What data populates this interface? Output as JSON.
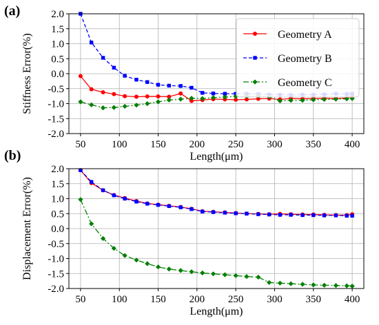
{
  "chart_data": [
    {
      "type": "line",
      "panel_label": "(a)",
      "xlabel": "Length(μm)",
      "ylabel": "Stiffness Error(%)",
      "xlim": [
        35,
        415
      ],
      "ylim": [
        -2.0,
        2.0
      ],
      "xticks": [
        "50",
        "100",
        "150",
        "200",
        "250",
        "300",
        "350",
        "400"
      ],
      "yticks": [
        "-2.0",
        "-1.5",
        "-1.0",
        "-0.5",
        "0.0",
        "0.5",
        "1.0",
        "1.5",
        "2.0"
      ],
      "grid": true,
      "legend": "top-right",
      "x": [
        50,
        64,
        79,
        93,
        107,
        122,
        136,
        150,
        164,
        179,
        193,
        207,
        221,
        236,
        250,
        264,
        279,
        293,
        307,
        321,
        336,
        350,
        364,
        379,
        393,
        400
      ],
      "series": [
        {
          "name": "Geometry A",
          "color": "#ff0000",
          "marker": "circle",
          "dash": "solid",
          "values": [
            -0.08,
            -0.52,
            -0.62,
            -0.68,
            -0.75,
            -0.77,
            -0.76,
            -0.76,
            -0.77,
            -0.66,
            -0.91,
            -0.88,
            -0.85,
            -0.86,
            -0.87,
            -0.86,
            -0.84,
            -0.83,
            -0.86,
            -0.83,
            -0.84,
            -0.83,
            -0.82,
            -0.83,
            -0.81,
            -0.77
          ]
        },
        {
          "name": "Geometry B",
          "color": "#0000ff",
          "marker": "square",
          "dash": "dashed",
          "values": [
            2.0,
            1.04,
            0.53,
            0.2,
            -0.07,
            -0.2,
            -0.28,
            -0.37,
            -0.4,
            -0.41,
            -0.47,
            -0.64,
            -0.66,
            -0.67,
            -0.67,
            -0.67,
            -0.68,
            -0.7,
            -0.7,
            -0.71,
            -0.7,
            -0.7,
            -0.69,
            -0.67,
            -0.68,
            -0.67
          ]
        },
        {
          "name": "Geometry C",
          "color": "#008000",
          "marker": "diamond",
          "dash": "dashdot",
          "values": [
            -0.94,
            -1.04,
            -1.14,
            -1.13,
            -1.09,
            -1.05,
            -1.0,
            -0.94,
            -0.88,
            -0.85,
            -0.82,
            -0.83,
            -0.8,
            -0.78,
            -0.76,
            -0.75,
            -0.74,
            -0.77,
            -0.91,
            -0.89,
            -0.89,
            -0.87,
            -0.86,
            -0.85,
            -0.84,
            -0.83
          ]
        }
      ]
    },
    {
      "type": "line",
      "panel_label": "(b)",
      "xlabel": "Length(μm)",
      "ylabel": "Displacement Error(%)",
      "xlim": [
        35,
        415
      ],
      "ylim": [
        -2.0,
        2.0
      ],
      "xticks": [
        "50",
        "100",
        "150",
        "200",
        "250",
        "300",
        "350",
        "400"
      ],
      "yticks": [
        "-2.0",
        "-1.5",
        "-1.0",
        "-0.5",
        "0.0",
        "0.5",
        "1.0",
        "1.5",
        "2.0"
      ],
      "grid": true,
      "x": [
        50,
        64,
        79,
        93,
        107,
        122,
        136,
        150,
        164,
        179,
        193,
        207,
        221,
        236,
        250,
        264,
        279,
        293,
        307,
        321,
        336,
        350,
        364,
        379,
        393,
        400
      ],
      "series": [
        {
          "color": "#ff0000",
          "marker": "circle",
          "dash": "solid",
          "values": [
            1.95,
            1.52,
            1.28,
            1.12,
            1.02,
            0.92,
            0.84,
            0.8,
            0.76,
            0.72,
            0.66,
            0.58,
            0.56,
            0.54,
            0.52,
            0.5,
            0.49,
            0.48,
            0.49,
            0.48,
            0.47,
            0.47,
            0.46,
            0.45,
            0.45,
            0.48
          ]
        },
        {
          "color": "#0000ff",
          "marker": "square",
          "dash": "dashed",
          "values": [
            1.95,
            1.56,
            1.28,
            1.11,
            1.0,
            0.9,
            0.83,
            0.79,
            0.75,
            0.71,
            0.65,
            0.57,
            0.55,
            0.53,
            0.51,
            0.5,
            0.48,
            0.47,
            0.46,
            0.46,
            0.45,
            0.45,
            0.44,
            0.44,
            0.43,
            0.43
          ]
        },
        {
          "color": "#008000",
          "marker": "diamond",
          "dash": "dashdot",
          "values": [
            0.97,
            0.16,
            -0.33,
            -0.66,
            -0.9,
            -1.05,
            -1.17,
            -1.28,
            -1.35,
            -1.4,
            -1.44,
            -1.48,
            -1.51,
            -1.54,
            -1.57,
            -1.6,
            -1.62,
            -1.8,
            -1.82,
            -1.84,
            -1.86,
            -1.88,
            -1.89,
            -1.9,
            -1.91,
            -1.92
          ]
        }
      ]
    }
  ]
}
